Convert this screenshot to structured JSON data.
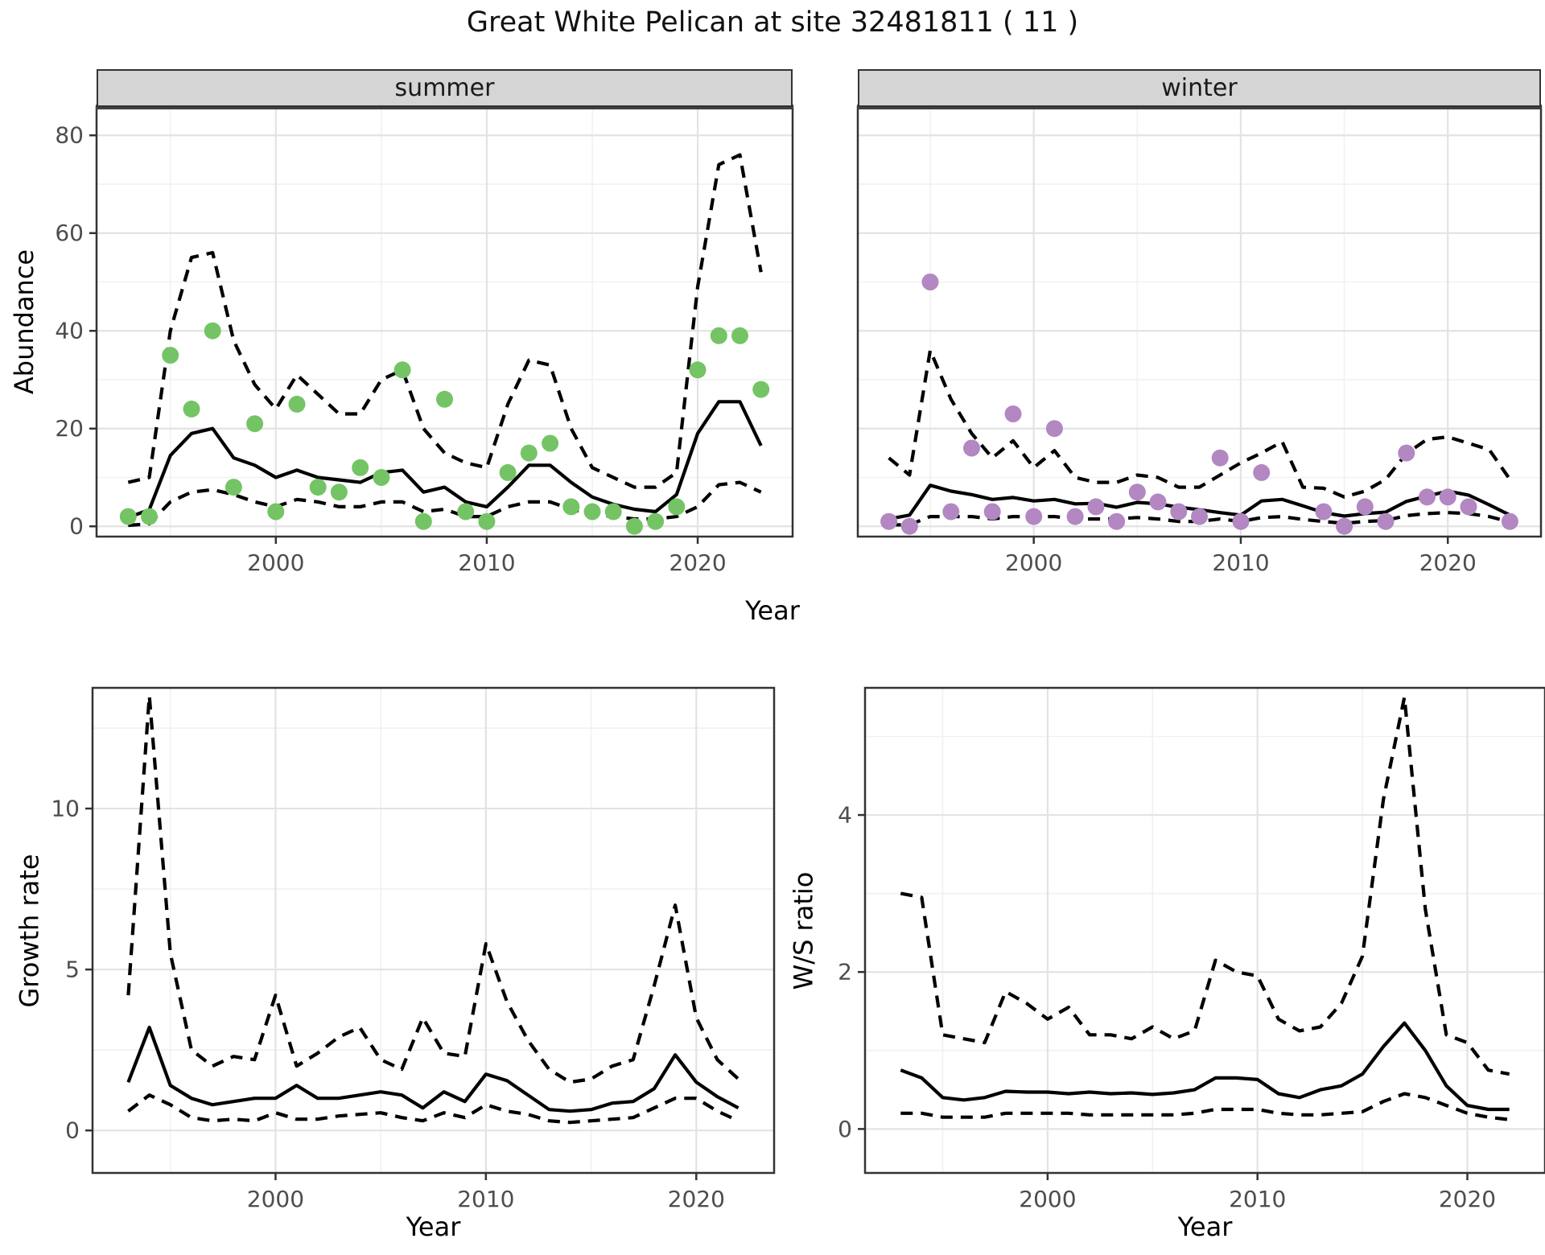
{
  "title": "Great White Pelican at site 32481811 ( 11 )",
  "labels": {
    "year": "Year",
    "abundance": "Abundance",
    "growth": "Growth rate",
    "ws": "W/S ratio"
  },
  "colors": {
    "summer_point": "#74c466",
    "winter_point": "#b287c2",
    "line": "#000000",
    "grid_major": "#e3e3e3",
    "grid_minor": "#f1f1f1",
    "strip_bg": "#d5d5d5",
    "axis_text": "#4d4d4d",
    "panel_border": "#333333"
  },
  "chart_data": [
    {
      "id": "abundance-summer",
      "type": "line",
      "facet_label": "summer",
      "title": "",
      "xlabel": "Year",
      "ylabel": "Abundance",
      "x": [
        1993,
        1994,
        1995,
        1996,
        1997,
        1998,
        1999,
        2000,
        2001,
        2002,
        2003,
        2004,
        2005,
        2006,
        2007,
        2008,
        2009,
        2010,
        2011,
        2012,
        2013,
        2014,
        2015,
        2016,
        2017,
        2018,
        2019,
        2020,
        2021,
        2022,
        2023
      ],
      "x_domain": [
        1991.5,
        2024.5
      ],
      "y_domain": [
        -2.1,
        85.8
      ],
      "x_ticks": [
        2000,
        2010,
        2020
      ],
      "x_minor": [
        1995,
        2005,
        2015
      ],
      "y_ticks": [
        0,
        20,
        40,
        60,
        80
      ],
      "y_minor": [
        10,
        30,
        50,
        70
      ],
      "show_y_labels": true,
      "series": [
        {
          "name": "median",
          "style": "solid",
          "values": [
            1.8,
            3.4,
            14.5,
            19,
            20,
            14,
            12.5,
            10,
            11.5,
            10,
            9.5,
            9,
            11,
            11.5,
            7,
            8,
            5,
            4,
            8,
            12.5,
            12.5,
            9,
            6,
            4.5,
            3.5,
            3,
            6.5,
            19,
            25.5,
            25.5,
            16.5
          ]
        },
        {
          "name": "upper_ci",
          "style": "dashed",
          "values": [
            9,
            10,
            40,
            55,
            56,
            38,
            29,
            24,
            31,
            27,
            23,
            23,
            30,
            32,
            20,
            15,
            13,
            12,
            25,
            34,
            33,
            20,
            12,
            10,
            8,
            8,
            11,
            49,
            74,
            76,
            52
          ]
        },
        {
          "name": "lower_ci",
          "style": "dashed",
          "values": [
            0.2,
            0.5,
            5,
            7,
            7.5,
            6.5,
            5,
            4,
            5.5,
            5,
            4,
            4,
            5,
            5,
            3,
            3.5,
            2,
            2,
            4,
            5,
            5,
            3.5,
            2.5,
            2,
            1.5,
            1.5,
            2,
            4,
            8.5,
            9,
            7
          ]
        },
        {
          "name": "observations",
          "style": "points",
          "color": "#74c466",
          "values": [
            2,
            2,
            35,
            24,
            40,
            8,
            21,
            3,
            25,
            8,
            7,
            12,
            10,
            32,
            1,
            26,
            3,
            1,
            11,
            15,
            17,
            4,
            3,
            3,
            0,
            1,
            4,
            32,
            39,
            39,
            28
          ]
        }
      ]
    },
    {
      "id": "abundance-winter",
      "type": "line",
      "facet_label": "winter",
      "title": "",
      "xlabel": "Year",
      "ylabel": "Abundance",
      "x": [
        1993,
        1994,
        1995,
        1996,
        1997,
        1998,
        1999,
        2000,
        2001,
        2002,
        2003,
        2004,
        2005,
        2006,
        2007,
        2008,
        2009,
        2010,
        2011,
        2012,
        2013,
        2014,
        2015,
        2016,
        2017,
        2018,
        2019,
        2020,
        2021,
        2022,
        2023
      ],
      "x_domain": [
        1991.5,
        2024.5
      ],
      "y_domain": [
        -2.1,
        85.8
      ],
      "x_ticks": [
        2000,
        2010,
        2020
      ],
      "x_minor": [
        1995,
        2005,
        2015
      ],
      "y_ticks": [
        0,
        20,
        40,
        60,
        80
      ],
      "y_minor": [
        10,
        30,
        50,
        70
      ],
      "show_y_labels": false,
      "series": [
        {
          "name": "median",
          "style": "solid",
          "values": [
            1.5,
            2.3,
            8.4,
            7.2,
            6.5,
            5.5,
            5.9,
            5.2,
            5.5,
            4.6,
            4.7,
            3.9,
            4.9,
            4.6,
            3.9,
            3.4,
            2.8,
            2.3,
            5.2,
            5.5,
            4.2,
            2.8,
            2.1,
            2.6,
            2.9,
            5.1,
            6.2,
            7.2,
            6.4,
            4.4,
            2.3
          ]
        },
        {
          "name": "upper_ci",
          "style": "dashed",
          "values": [
            14,
            10.5,
            36,
            26,
            19,
            14,
            17.5,
            12,
            15.5,
            10,
            9,
            9,
            10.5,
            10,
            8,
            8,
            10.5,
            13,
            15,
            17.3,
            8,
            7.8,
            6,
            7.2,
            9.6,
            14.9,
            17.8,
            18.3,
            17,
            15.7,
            9.6
          ]
        },
        {
          "name": "lower_ci",
          "style": "dashed",
          "values": [
            0.3,
            0.3,
            2,
            2,
            2,
            1.5,
            2,
            2,
            2,
            1.5,
            1.5,
            1.5,
            1.8,
            1.5,
            1,
            1,
            1.5,
            1,
            1.8,
            2,
            1.4,
            1,
            0.6,
            1,
            1.2,
            2.2,
            2.6,
            2.8,
            2.6,
            2,
            0.9
          ]
        },
        {
          "name": "observations",
          "style": "points",
          "color": "#b287c2",
          "values": [
            1,
            0,
            50,
            3,
            16,
            3,
            23,
            2,
            20,
            2,
            4,
            1,
            7,
            5,
            3,
            2,
            14,
            1,
            11,
            null,
            null,
            3,
            0,
            4,
            1,
            15,
            6,
            6,
            4,
            null,
            1
          ]
        }
      ]
    },
    {
      "id": "growth-rate",
      "type": "line",
      "facet_label": "",
      "title": "",
      "xlabel": "Year",
      "ylabel": "Growth rate",
      "x": [
        1993,
        1994,
        1995,
        1996,
        1997,
        1998,
        1999,
        2000,
        2001,
        2002,
        2003,
        2004,
        2005,
        2006,
        2007,
        2008,
        2009,
        2010,
        2011,
        2012,
        2013,
        2014,
        2015,
        2016,
        2017,
        2018,
        2019,
        2020,
        2021,
        2022
      ],
      "x_domain": [
        1991.3,
        2023.7
      ],
      "y_domain": [
        -1.32,
        13.75
      ],
      "x_ticks": [
        2000,
        2010,
        2020
      ],
      "x_minor": [
        1995,
        2005,
        2015
      ],
      "y_ticks": [
        0,
        5,
        10
      ],
      "y_minor": [
        2.5,
        7.5,
        12.5
      ],
      "show_y_labels": true,
      "series": [
        {
          "name": "median",
          "style": "solid",
          "values": [
            1.5,
            3.2,
            1.4,
            1.0,
            0.8,
            0.9,
            1.0,
            1.0,
            1.4,
            1.0,
            1.0,
            1.1,
            1.2,
            1.1,
            0.7,
            1.2,
            0.9,
            1.75,
            1.55,
            1.1,
            0.65,
            0.6,
            0.65,
            0.85,
            0.9,
            1.3,
            2.35,
            1.5,
            1.05,
            0.7
          ]
        },
        {
          "name": "upper_ci",
          "style": "dashed",
          "values": [
            4.2,
            13.5,
            5.5,
            2.5,
            2.0,
            2.3,
            2.2,
            4.2,
            2.0,
            2.4,
            2.9,
            3.2,
            2.2,
            1.9,
            3.5,
            2.4,
            2.3,
            5.8,
            4.0,
            2.8,
            1.9,
            1.5,
            1.6,
            2.0,
            2.2,
            4.5,
            7.0,
            3.5,
            2.2,
            1.6
          ]
        },
        {
          "name": "lower_ci",
          "style": "dashed",
          "values": [
            0.6,
            1.1,
            0.8,
            0.4,
            0.3,
            0.35,
            0.3,
            0.55,
            0.35,
            0.35,
            0.45,
            0.5,
            0.55,
            0.4,
            0.3,
            0.55,
            0.4,
            0.8,
            0.6,
            0.5,
            0.3,
            0.25,
            0.3,
            0.35,
            0.4,
            0.7,
            1.0,
            1.0,
            0.6,
            0.3
          ]
        }
      ]
    },
    {
      "id": "ws-ratio",
      "type": "line",
      "facet_label": "",
      "title": "",
      "xlabel": "Year",
      "ylabel": "W/S ratio",
      "x": [
        1993,
        1994,
        1995,
        1996,
        1997,
        1998,
        1999,
        2000,
        2001,
        2002,
        2003,
        2004,
        2005,
        2006,
        2007,
        2008,
        2009,
        2010,
        2011,
        2012,
        2013,
        2014,
        2015,
        2016,
        2017,
        2018,
        2019,
        2020,
        2021,
        2022
      ],
      "x_domain": [
        1991.3,
        2023.7
      ],
      "y_domain": [
        -0.56,
        5.62
      ],
      "x_ticks": [
        2000,
        2010,
        2020
      ],
      "x_minor": [
        1995,
        2005,
        2015
      ],
      "y_ticks": [
        0,
        2,
        4
      ],
      "y_minor": [
        1,
        3,
        5
      ],
      "show_y_labels": true,
      "series": [
        {
          "name": "median",
          "style": "solid",
          "values": [
            0.75,
            0.65,
            0.4,
            0.37,
            0.4,
            0.48,
            0.47,
            0.47,
            0.45,
            0.47,
            0.45,
            0.46,
            0.44,
            0.46,
            0.5,
            0.65,
            0.65,
            0.63,
            0.45,
            0.4,
            0.5,
            0.55,
            0.7,
            1.05,
            1.35,
            1.0,
            0.55,
            0.3,
            0.25,
            0.25
          ]
        },
        {
          "name": "upper_ci",
          "style": "dashed",
          "values": [
            3.0,
            2.95,
            1.2,
            1.15,
            1.1,
            1.75,
            1.6,
            1.4,
            1.55,
            1.2,
            1.2,
            1.15,
            1.3,
            1.15,
            1.25,
            2.15,
            2.0,
            1.95,
            1.4,
            1.25,
            1.3,
            1.6,
            2.2,
            4.2,
            5.5,
            2.8,
            1.2,
            1.1,
            0.75,
            0.7
          ]
        },
        {
          "name": "lower_ci",
          "style": "dashed",
          "values": [
            0.2,
            0.2,
            0.15,
            0.15,
            0.15,
            0.2,
            0.2,
            0.2,
            0.2,
            0.18,
            0.18,
            0.18,
            0.18,
            0.18,
            0.2,
            0.25,
            0.25,
            0.25,
            0.2,
            0.18,
            0.18,
            0.2,
            0.22,
            0.35,
            0.45,
            0.4,
            0.3,
            0.2,
            0.15,
            0.12
          ]
        }
      ]
    }
  ]
}
